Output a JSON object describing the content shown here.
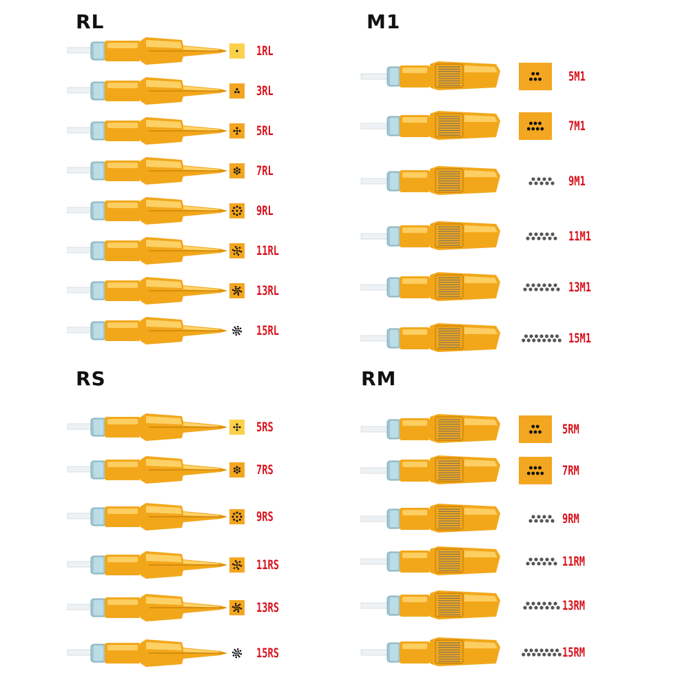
{
  "panels": [
    {
      "key": "rl",
      "title": "RL",
      "type": "round",
      "items": [
        {
          "label": "1RL",
          "dots": 1,
          "pattern": "single"
        },
        {
          "label": "3RL",
          "dots": 3,
          "pattern": "triangle"
        },
        {
          "label": "5RL",
          "dots": 5,
          "pattern": "ring"
        },
        {
          "label": "7RL",
          "dots": 7,
          "pattern": "ring"
        },
        {
          "label": "9RL",
          "dots": 9,
          "pattern": "ring"
        },
        {
          "label": "11RL",
          "dots": 11,
          "pattern": "ring"
        },
        {
          "label": "13RL",
          "dots": 13,
          "pattern": "ring"
        },
        {
          "label": "15RL",
          "dots": 15,
          "pattern": "ring"
        }
      ]
    },
    {
      "key": "m1",
      "title": "M1",
      "type": "magnum",
      "items": [
        {
          "label": "5M1",
          "dots": 5,
          "pattern": "magnum-box"
        },
        {
          "label": "7M1",
          "dots": 7,
          "pattern": "magnum-box"
        },
        {
          "label": "9M1",
          "dots": 9,
          "pattern": "magnum-line"
        },
        {
          "label": "11M1",
          "dots": 11,
          "pattern": "magnum-line"
        },
        {
          "label": "13M1",
          "dots": 13,
          "pattern": "magnum-line"
        },
        {
          "label": "15M1",
          "dots": 15,
          "pattern": "magnum-line"
        }
      ]
    },
    {
      "key": "rs",
      "title": "RS",
      "type": "round",
      "items": [
        {
          "label": "5RS",
          "dots": 5,
          "pattern": "ring"
        },
        {
          "label": "7RS",
          "dots": 7,
          "pattern": "ring"
        },
        {
          "label": "9RS",
          "dots": 9,
          "pattern": "ring"
        },
        {
          "label": "11RS",
          "dots": 11,
          "pattern": "ring"
        },
        {
          "label": "13RS",
          "dots": 13,
          "pattern": "ring"
        },
        {
          "label": "15RS",
          "dots": 15,
          "pattern": "ring"
        }
      ]
    },
    {
      "key": "rm",
      "title": "RM",
      "type": "magnum",
      "items": [
        {
          "label": "5RM",
          "dots": 5,
          "pattern": "magnum-box"
        },
        {
          "label": "7RM",
          "dots": 7,
          "pattern": "magnum-box"
        },
        {
          "label": "9RM",
          "dots": 9,
          "pattern": "magnum-line"
        },
        {
          "label": "11RM",
          "dots": 11,
          "pattern": "magnum-line"
        },
        {
          "label": "13RM",
          "dots": 13,
          "pattern": "magnum-line"
        },
        {
          "label": "15RM",
          "dots": 15,
          "pattern": "magnum-line"
        }
      ]
    }
  ],
  "colors": {
    "label": "#d8111b",
    "cartridge_body": "#f2a71b",
    "cartridge_light": "#ffd873",
    "cartridge_dark": "#c77d05",
    "swatch_box": "#f3a61f",
    "swatch_box_light": "#fbd14a",
    "cap_blue": "#9fc8d4",
    "dot": "#111111",
    "dot_gray": "#555555"
  }
}
